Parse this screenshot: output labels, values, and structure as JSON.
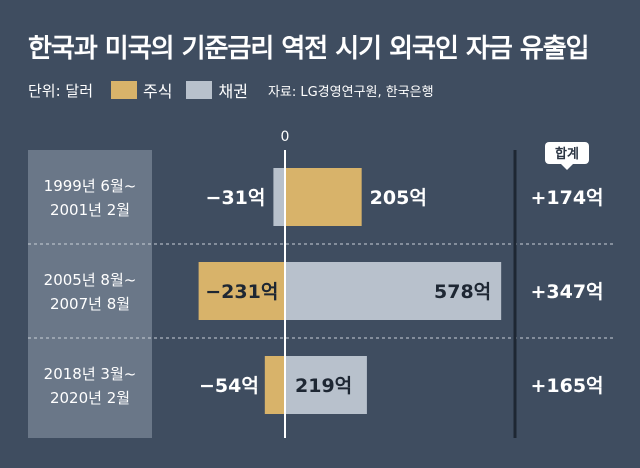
{
  "title": "한국과 미국의 기준금리 역전 시기 외국인 자금 유출입",
  "legend": {
    "unit": "단위: 달러",
    "items": [
      {
        "name": "주식",
        "color": "#d8b36a"
      },
      {
        "name": "채권",
        "color": "#b8c1cc"
      }
    ],
    "source": "자료: LG경영연구원, 한국은행"
  },
  "total_header": "합계",
  "chart_data": {
    "type": "bar",
    "orientation": "horizontal",
    "zero_label": "0",
    "categories": [
      [
        "1999년 6월~",
        "2001년 2월"
      ],
      [
        "2005년 8월~",
        "2007년 8월"
      ],
      [
        "2018년 3월~",
        "2020년 2월"
      ]
    ],
    "series": [
      {
        "name": "주식",
        "values": [
          205,
          -231,
          -54
        ],
        "labels": [
          "205억",
          "−231억",
          "−54억"
        ]
      },
      {
        "name": "채권",
        "values": [
          -31,
          578,
          219
        ],
        "labels": [
          "−31억",
          "578억",
          "219억"
        ]
      }
    ],
    "totals": [
      "+174억",
      "+347억",
      "+165억"
    ],
    "colors": {
      "stock": "#d8b36a",
      "bond": "#b8c1cc"
    }
  }
}
